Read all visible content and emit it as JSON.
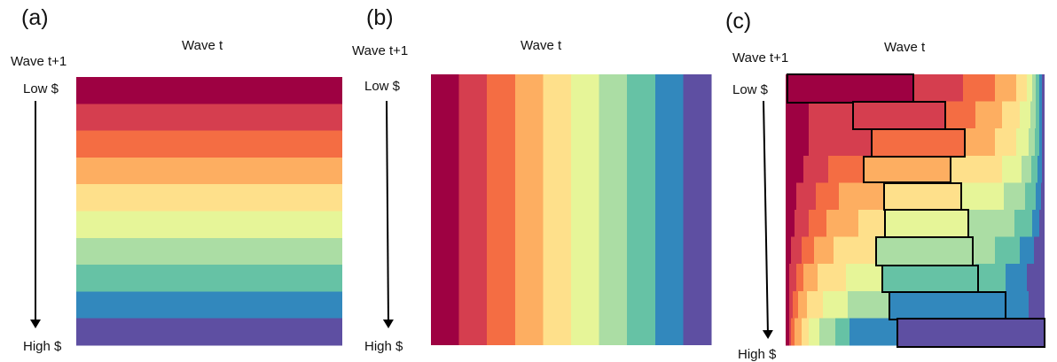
{
  "colors": [
    "#9e0142",
    "#d53e4f",
    "#f46d43",
    "#fdae61",
    "#fee08b",
    "#e6f598",
    "#abdda4",
    "#66c2a5",
    "#3288bd",
    "#5e4fa2"
  ],
  "panels": [
    {
      "tag": "(a)",
      "wave_t": "Wave t",
      "wave_t1": "Wave t+1",
      "low": "Low $",
      "high": "High $"
    },
    {
      "tag": "(b)",
      "wave_t": "Wave t",
      "wave_t1": "Wave t+1",
      "low": "Low $",
      "high": "High $"
    },
    {
      "tag": "(c)",
      "wave_t": "Wave t",
      "wave_t1": "Wave t+1",
      "low": "Low $",
      "high": "High $"
    }
  ]
}
